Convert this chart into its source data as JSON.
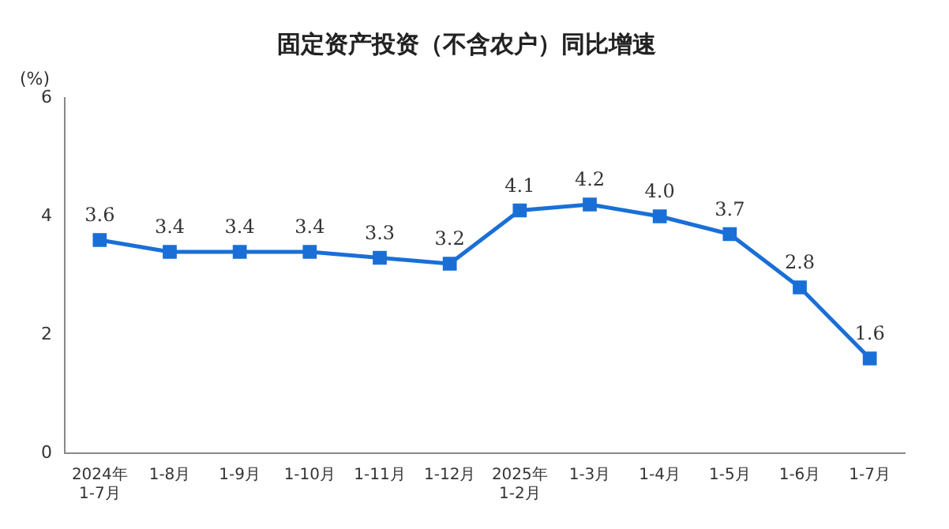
{
  "chart_data": {
    "type": "line",
    "title": "固定资产投资（不含农户）同比增速",
    "ylabel": "(%)",
    "categories": [
      "2024年\n1-7月",
      "1-8月",
      "1-9月",
      "1-10月",
      "1-11月",
      "1-12月",
      "2025年\n1-2月",
      "1-3月",
      "1-4月",
      "1-5月",
      "1-6月",
      "1-7月"
    ],
    "series": [
      {
        "color": "#1a6fd6",
        "values": [
          3.6,
          3.4,
          3.4,
          3.4,
          3.3,
          3.2,
          4.1,
          4.2,
          4.0,
          3.7,
          2.8,
          1.6
        ],
        "value_labels": [
          "3.6",
          "3.4",
          "3.4",
          "3.4",
          "3.3",
          "3.2",
          "4.1",
          "4.2",
          "4.0",
          "3.7",
          "2.8",
          "1.6"
        ]
      }
    ],
    "ylim": [
      0,
      6
    ],
    "yticks": [
      0,
      2,
      4,
      6
    ],
    "grid": false,
    "legend": false,
    "marker": "square",
    "line_style": "solid"
  }
}
